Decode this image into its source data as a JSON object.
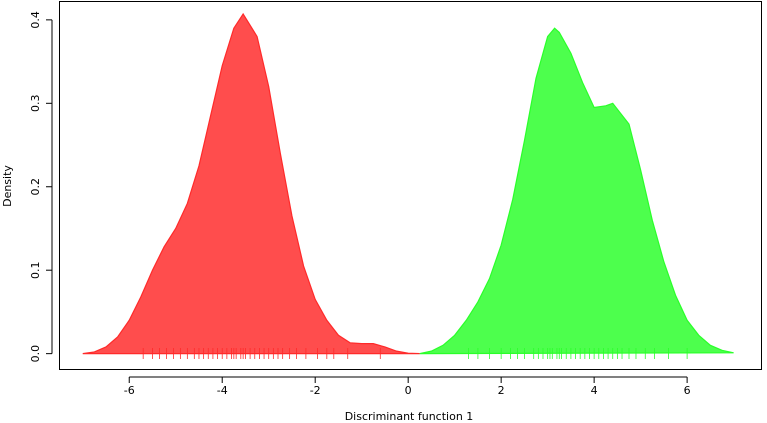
{
  "chart_data": {
    "type": "density",
    "xlabel": "Discriminant function 1",
    "ylabel": "Density",
    "xlim": [
      -7.5,
      7.6
    ],
    "ylim": [
      -0.019,
      0.422
    ],
    "xticks": [
      -6,
      -4,
      -2,
      0,
      2,
      4,
      6
    ],
    "yticks": [
      {
        "value": 0,
        "label": "0.0"
      },
      {
        "value": 0.1,
        "label": "0.1"
      },
      {
        "value": 0.2,
        "label": "0.2"
      },
      {
        "value": 0.3,
        "label": "0.3"
      },
      {
        "value": 0.4,
        "label": "0.4"
      }
    ],
    "series": [
      {
        "color": "#ff4d4d",
        "stroke": "#ff2a2a",
        "x": [
          -7.0,
          -6.75,
          -6.5,
          -6.25,
          -6.0,
          -5.75,
          -5.5,
          -5.25,
          -5.0,
          -4.75,
          -4.5,
          -4.25,
          -4.0,
          -3.75,
          -3.55,
          -3.25,
          -3.0,
          -2.75,
          -2.5,
          -2.25,
          -2.0,
          -1.75,
          -1.5,
          -1.25,
          -1.0,
          -0.75,
          -0.5,
          -0.25,
          0.0,
          0.25
        ],
        "values": [
          0.0,
          0.002,
          0.008,
          0.02,
          0.04,
          0.068,
          0.1,
          0.128,
          0.15,
          0.18,
          0.225,
          0.285,
          0.345,
          0.39,
          0.407,
          0.38,
          0.32,
          0.24,
          0.165,
          0.105,
          0.065,
          0.04,
          0.022,
          0.013,
          0.012,
          0.012,
          0.008,
          0.003,
          0.0005,
          0.0
        ],
        "rug": [
          -5.7,
          -5.5,
          -5.35,
          -5.2,
          -5.05,
          -4.9,
          -4.75,
          -4.6,
          -4.5,
          -4.4,
          -4.3,
          -4.2,
          -4.1,
          -4.0,
          -3.9,
          -3.8,
          -3.75,
          -3.7,
          -3.6,
          -3.55,
          -3.5,
          -3.4,
          -3.3,
          -3.2,
          -3.1,
          -3.0,
          -2.9,
          -2.8,
          -2.7,
          -2.55,
          -2.4,
          -2.2,
          -1.95,
          -1.75,
          -1.6,
          -1.3,
          -0.6
        ]
      },
      {
        "color": "#4dff4d",
        "stroke": "#2aff2a",
        "x": [
          0.25,
          0.5,
          0.75,
          1.0,
          1.25,
          1.5,
          1.75,
          2.0,
          2.25,
          2.5,
          2.75,
          3.0,
          3.15,
          3.25,
          3.5,
          3.75,
          4.0,
          4.25,
          4.4,
          4.75,
          5.0,
          5.25,
          5.5,
          5.75,
          6.0,
          6.25,
          6.5,
          6.75,
          7.0
        ],
        "values": [
          0.0,
          0.003,
          0.01,
          0.022,
          0.04,
          0.062,
          0.09,
          0.13,
          0.185,
          0.255,
          0.33,
          0.38,
          0.39,
          0.385,
          0.36,
          0.325,
          0.295,
          0.297,
          0.3,
          0.275,
          0.22,
          0.16,
          0.11,
          0.07,
          0.04,
          0.022,
          0.01,
          0.004,
          0.001
        ],
        "rug": [
          1.3,
          1.5,
          1.75,
          2.0,
          2.2,
          2.35,
          2.5,
          2.7,
          2.8,
          2.9,
          3.0,
          3.05,
          3.1,
          3.2,
          3.25,
          3.3,
          3.4,
          3.5,
          3.6,
          3.7,
          3.8,
          3.9,
          4.0,
          4.1,
          4.2,
          4.3,
          4.4,
          4.5,
          4.6,
          4.75,
          4.9,
          5.1,
          5.3,
          5.6,
          6.0
        ]
      }
    ]
  }
}
